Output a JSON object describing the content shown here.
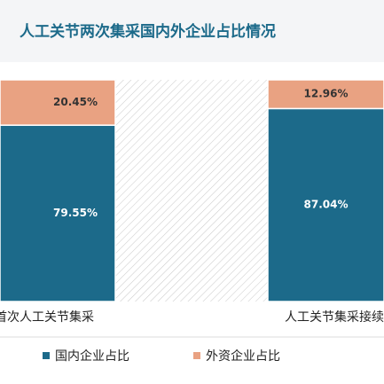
{
  "chart_data": {
    "type": "stacked-bar",
    "title": "人工关节两次集采国内外企业占比情况",
    "categories": [
      "首次人工关节集采",
      "人工关节集采接续"
    ],
    "series": [
      {
        "name": "国内企业占比",
        "color": "#1c6a8a",
        "values": [
          79.55,
          87.04
        ],
        "value_labels": [
          "79.55%",
          "87.04%"
        ]
      },
      {
        "name": "外资企业占比",
        "color": "#e9a282",
        "values": [
          20.45,
          12.96
        ],
        "value_labels": [
          "20.45%",
          "12.96%"
        ]
      }
    ]
  }
}
